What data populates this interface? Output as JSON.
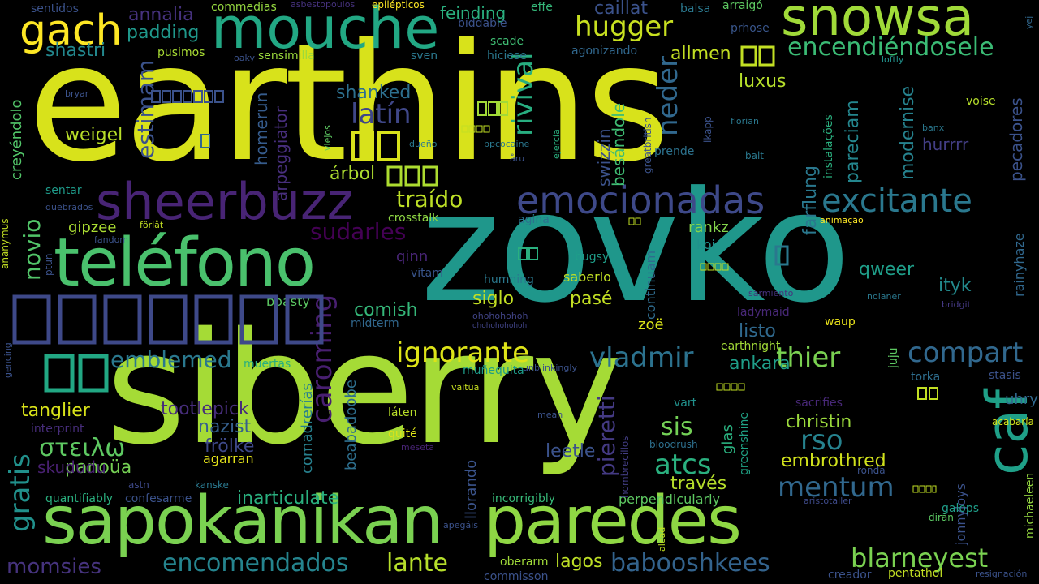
{
  "background": "#000000",
  "words": [
    {
      "text": "earthins",
      "color": "#d8e21b"
    },
    {
      "text": "zovko",
      "color": "#1f978b"
    },
    {
      "text": "siberry",
      "color": "#a5db36"
    },
    {
      "text": "sapokanikan",
      "color": "#7ad151"
    },
    {
      "text": "paredes",
      "color": "#8fd744"
    },
    {
      "text": "teléfono",
      "color": "#4ac16d"
    },
    {
      "text": "sheerbuzz",
      "color": "#482475"
    },
    {
      "text": "mouche",
      "color": "#22a884"
    },
    {
      "text": "snowsa",
      "color": "#a0da39"
    },
    {
      "text": "emocionadas",
      "color": "#3e4989"
    },
    {
      "text": "excitante",
      "color": "#2a788e"
    },
    {
      "text": "caf",
      "color": "#1fa088"
    },
    {
      "text": "gach",
      "color": "#fde725"
    },
    {
      "text": "ignorante",
      "color": "#dde318"
    },
    {
      "text": "vladmir",
      "color": "#2c728e"
    },
    {
      "text": "compart",
      "color": "#31688e"
    },
    {
      "text": "blarneyest",
      "color": "#7ad151"
    },
    {
      "text": "encomendados",
      "color": "#25848e"
    },
    {
      "text": "lante",
      "color": "#b5de2b"
    },
    {
      "text": "babooshkees",
      "color": "#33638d"
    },
    {
      "text": "hugger",
      "color": "#c8e020"
    },
    {
      "text": "encendiéndosele",
      "color": "#3bbb75"
    },
    {
      "text": "emblemed",
      "color": "#2a788e"
    },
    {
      "text": "atcs",
      "color": "#2ab07f"
    },
    {
      "text": "rso",
      "color": "#26828e"
    },
    {
      "text": "mentum",
      "color": "#31688e"
    },
    {
      "text": "thier",
      "color": "#7ad151"
    },
    {
      "text": "caroming",
      "color": "#481f70"
    },
    {
      "text": "στειλω",
      "color": "#5ec962"
    },
    {
      "text": "gratis",
      "color": "#21918c"
    },
    {
      "text": "novio",
      "color": "#52c569"
    },
    {
      "text": "latín",
      "color": "#3f4788"
    },
    {
      "text": "rivival",
      "color": "#28ae80"
    },
    {
      "text": "neder",
      "color": "#31688e"
    },
    {
      "text": "sudarles",
      "color": "#440154"
    },
    {
      "text": "traído",
      "color": "#bddf26"
    },
    {
      "text": "momsies",
      "color": "#46337e"
    },
    {
      "text": "pieretti",
      "color": "#443a83"
    },
    {
      "text": "sis",
      "color": "#73d056"
    },
    {
      "text": "christin",
      "color": "#9bd93c"
    },
    {
      "text": "embrothred",
      "color": "#d0e11c"
    },
    {
      "text": "tanglier",
      "color": "#d8e219"
    },
    {
      "text": "tootlepick",
      "color": "#472d7b"
    },
    {
      "text": "nazist",
      "color": "#355f8d"
    },
    {
      "text": "frölke",
      "color": "#3e4989"
    },
    {
      "text": "comish",
      "color": "#35b779"
    },
    {
      "text": "siglo",
      "color": "#c2df23"
    },
    {
      "text": "pasé",
      "color": "#c2df23"
    },
    {
      "text": "ityk",
      "color": "#238a8d"
    },
    {
      "text": "qweer",
      "color": "#1f9e89"
    },
    {
      "text": "ankara",
      "color": "#1f9e89"
    },
    {
      "text": "listo",
      "color": "#30698e"
    },
    {
      "text": "leetle",
      "color": "#3b528b"
    },
    {
      "text": "inarticulate",
      "color": "#2ab07f"
    },
    {
      "text": "través",
      "color": "#b5de2b"
    },
    {
      "text": "lagos",
      "color": "#bddf26"
    },
    {
      "text": "panoüa",
      "color": "#75d054"
    },
    {
      "text": "skududu",
      "color": "#482071"
    },
    {
      "text": "agarran",
      "color": "#e5e419"
    },
    {
      "text": "weigel",
      "color": "#b8de29"
    },
    {
      "text": "estimam",
      "color": "#3b528b"
    },
    {
      "text": "padding",
      "color": "#1f988b"
    },
    {
      "text": "annalia",
      "color": "#46327e"
    },
    {
      "text": "shastri",
      "color": "#23888e"
    },
    {
      "text": "luxus",
      "color": "#b5de2b"
    },
    {
      "text": "allmen",
      "color": "#c2df23"
    },
    {
      "text": "shanked",
      "color": "#2d708e"
    },
    {
      "text": "homerun",
      "color": "#365c8d"
    },
    {
      "text": "arpeggiator",
      "color": "#472e7c"
    },
    {
      "text": "árbol",
      "color": "#addc30"
    },
    {
      "text": "swizzin",
      "color": "#3b528b"
    },
    {
      "text": "besándole",
      "color": "#3fbc73"
    },
    {
      "text": "farflung",
      "color": "#2a788e"
    },
    {
      "text": "pareciam",
      "color": "#24868e"
    },
    {
      "text": "modernise",
      "color": "#26828e"
    },
    {
      "text": "hurrrr",
      "color": "#433e85"
    },
    {
      "text": "pecadores",
      "color": "#3b528b"
    },
    {
      "text": "rankz",
      "color": "#84d44b"
    },
    {
      "text": "koi",
      "color": "#21918c"
    },
    {
      "text": "qinn",
      "color": "#482576"
    },
    {
      "text": "gipzee",
      "color": "#aadc32"
    },
    {
      "text": "crosstalk",
      "color": "#8fd744"
    },
    {
      "text": "creyéndolo",
      "color": "#52c569"
    },
    {
      "text": "sentar",
      "color": "#1e9b8a"
    },
    {
      "text": "continuam",
      "color": "#2f6c8e"
    },
    {
      "text": "saberlo",
      "color": "#c2df23"
    },
    {
      "text": "humning",
      "color": "#2a788e"
    },
    {
      "text": "bugsy",
      "color": "#1f9e89"
    },
    {
      "text": "zoë",
      "color": "#dae319"
    },
    {
      "text": "vitam",
      "color": "#39558c"
    },
    {
      "text": "boasty",
      "color": "#5cc863"
    },
    {
      "text": "midterm",
      "color": "#31688e"
    },
    {
      "text": "muertas",
      "color": "#29af7f"
    },
    {
      "text": "comadrerías",
      "color": "#27808e"
    },
    {
      "text": "beabadoobe",
      "color": "#2e6f8e"
    },
    {
      "text": "llorando",
      "color": "#3a538b"
    },
    {
      "text": "láten",
      "color": "#b8de29"
    },
    {
      "text": "quité",
      "color": "#dde318"
    },
    {
      "text": "glas",
      "color": "#2ab07f"
    },
    {
      "text": "jonnyjoys",
      "color": "#3b528b"
    },
    {
      "text": "rainyhaze",
      "color": "#31688e"
    },
    {
      "text": "waup",
      "color": "#ece51b"
    },
    {
      "text": "uhry",
      "color": "#31688e"
    },
    {
      "text": "torka",
      "color": "#2e6e8e"
    },
    {
      "text": "stasis",
      "color": "#3b528b"
    },
    {
      "text": "juju",
      "color": "#5ec962"
    },
    {
      "text": "earthnight",
      "color": "#a2da37"
    },
    {
      "text": "greenshine",
      "color": "#20a386"
    },
    {
      "text": "perpendicularly",
      "color": "#5ec962"
    },
    {
      "text": "incorrigibly",
      "color": "#37b878"
    },
    {
      "text": "confesarme",
      "color": "#3b528b"
    },
    {
      "text": "quantifiably",
      "color": "#2ab07f"
    },
    {
      "text": "oberarm",
      "color": "#a0da39"
    },
    {
      "text": "commisson",
      "color": "#3b528b"
    },
    {
      "text": "creador",
      "color": "#3b528b"
    },
    {
      "text": "pentathol",
      "color": "#c2df23"
    },
    {
      "text": "galops",
      "color": "#1f9e89"
    },
    {
      "text": "michaeleen",
      "color": "#95d840"
    },
    {
      "text": "dirán",
      "color": "#5cc863"
    },
    {
      "text": "kanske",
      "color": "#2a788e"
    },
    {
      "text": "astn",
      "color": "#3e4989"
    },
    {
      "text": "interprint",
      "color": "#472d7b"
    },
    {
      "text": "sacrifies",
      "color": "#482878"
    },
    {
      "text": "acabaría",
      "color": "#d2e21b"
    },
    {
      "text": "ronda",
      "color": "#3b528b"
    },
    {
      "text": "aristotaller",
      "color": "#3e4a89"
    },
    {
      "text": "bloodrush",
      "color": "#2d708e"
    },
    {
      "text": "hombrecillos",
      "color": "#433e85"
    },
    {
      "text": "apegáis",
      "color": "#3b528b"
    },
    {
      "text": "vart",
      "color": "#21918c"
    },
    {
      "text": "mean",
      "color": "#3b528b"
    },
    {
      "text": "meseta",
      "color": "#482475"
    },
    {
      "text": "vaitüa",
      "color": "#c8e020"
    },
    {
      "text": "muñequita",
      "color": "#1e9c89"
    },
    {
      "text": "unblinkingly",
      "color": "#3b528b"
    },
    {
      "text": "ladymaid",
      "color": "#482878"
    },
    {
      "text": "sarmiento",
      "color": "#46337e"
    },
    {
      "text": "nolaner",
      "color": "#2a788e"
    },
    {
      "text": "bridgit",
      "color": "#443983"
    },
    {
      "text": "ohohohohoh",
      "color": "#414487"
    },
    {
      "text": "ikapp",
      "color": "#3b528b"
    },
    {
      "text": "florian",
      "color": "#2a788e"
    },
    {
      "text": "prende",
      "color": "#2c728e"
    },
    {
      "text": "balt",
      "color": "#2a788e"
    },
    {
      "text": "greatbritish",
      "color": "#3b528b"
    },
    {
      "text": "instalações",
      "color": "#2ab07f"
    },
    {
      "text": "banx",
      "color": "#2a788e"
    },
    {
      "text": "voise",
      "color": "#b5de2b"
    },
    {
      "text": "loftly",
      "color": "#21918c"
    },
    {
      "text": "yej",
      "color": "#31688e"
    },
    {
      "text": "prhose",
      "color": "#39568c"
    },
    {
      "text": "arraigó",
      "color": "#5ec962"
    },
    {
      "text": "balsa",
      "color": "#2a788e"
    },
    {
      "text": "caillat",
      "color": "#3b528b"
    },
    {
      "text": "feinding",
      "color": "#2ab07f"
    },
    {
      "text": "effe",
      "color": "#35b779"
    },
    {
      "text": "biddable",
      "color": "#3b528b"
    },
    {
      "text": "scade",
      "color": "#3fbc73"
    },
    {
      "text": "hiciese",
      "color": "#2a788e"
    },
    {
      "text": "sven",
      "color": "#2a788e"
    },
    {
      "text": "agonizando",
      "color": "#31688e"
    },
    {
      "text": "epilépticos",
      "color": "#fde725"
    },
    {
      "text": "asbestopoulos",
      "color": "#46327e"
    },
    {
      "text": "commedias",
      "color": "#95d840"
    },
    {
      "text": "sentidos",
      "color": "#3b528b"
    },
    {
      "text": "pusimos",
      "color": "#a8db34"
    },
    {
      "text": "sensimilla",
      "color": "#9bd93c"
    },
    {
      "text": "oaky",
      "color": "#3b528b"
    },
    {
      "text": "bryar",
      "color": "#3b528b"
    },
    {
      "text": "viejos",
      "color": "#5ec962"
    },
    {
      "text": "dueño",
      "color": "#2a788e"
    },
    {
      "text": "ppcocaine",
      "color": "#2a788e"
    },
    {
      "text": "ejercía",
      "color": "#2ab07f"
    },
    {
      "text": "åru",
      "color": "#3b528b"
    },
    {
      "text": "agina",
      "color": "#2c728e"
    },
    {
      "text": "animação",
      "color": "#fde725"
    },
    {
      "text": "förlåt",
      "color": "#c2df23"
    },
    {
      "text": "fandom",
      "color": "#3b528b"
    },
    {
      "text": "quebrados",
      "color": "#3b528b"
    },
    {
      "text": "ananymus",
      "color": "#c2df23"
    },
    {
      "text": "ptun",
      "color": "#3b528b"
    },
    {
      "text": "gencing",
      "color": "#3b528b"
    },
    {
      "text": "alead",
      "color": "#c2df23"
    },
    {
      "text": "resignación",
      "color": "#3b528b"
    },
    {
      "text": "ohohohohohoh",
      "color": "#414487"
    }
  ]
}
